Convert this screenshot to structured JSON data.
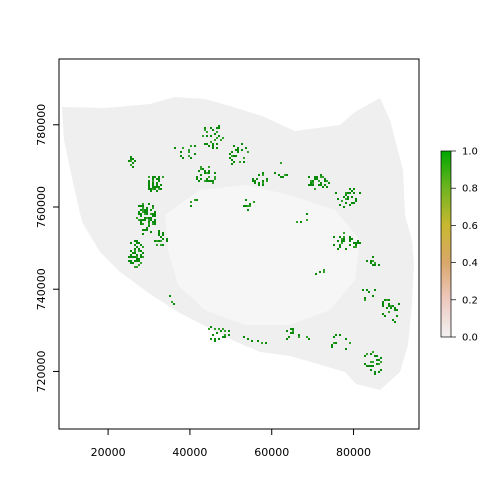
{
  "chart_data": {
    "type": "heatmap",
    "title": "",
    "xlabel": "",
    "ylabel": "",
    "xlim": [
      8000,
      96000
    ],
    "ylim": [
      706000,
      796000
    ],
    "x_ticks": [
      20000,
      40000,
      60000,
      80000
    ],
    "x_tick_labels": [
      "20000",
      "40000",
      "60000",
      "80000"
    ],
    "y_ticks": [
      720000,
      740000,
      760000,
      780000
    ],
    "y_tick_labels": [
      "720000",
      "740000",
      "760000",
      "780000"
    ],
    "legend": {
      "placement": "right",
      "range": [
        0,
        1
      ],
      "ticks": [
        0.0,
        0.2,
        0.4,
        0.6,
        0.8,
        1.0
      ],
      "tick_labels": [
        "0.0",
        "0.2",
        "0.4",
        "0.6",
        "0.8",
        "1.0"
      ],
      "colors": [
        "#f2f2f2",
        "#eec9c0",
        "#d9a76a",
        "#c9b830",
        "#6fb520",
        "#00a600"
      ]
    },
    "colors": {
      "background_region": "#efefef",
      "high_value": "#0a8a0a",
      "mid_value": "#33a02c"
    },
    "clusters": [
      {
        "x": 29000,
        "y": 758000,
        "rx": 2600,
        "ry": 4500,
        "density": 0.55,
        "value": 1.0
      },
      {
        "x": 26500,
        "y": 749000,
        "rx": 2200,
        "ry": 3500,
        "density": 0.5,
        "value": 1.0
      },
      {
        "x": 31500,
        "y": 766000,
        "rx": 2200,
        "ry": 2500,
        "density": 0.45,
        "value": 1.0
      },
      {
        "x": 25500,
        "y": 771500,
        "rx": 1200,
        "ry": 1500,
        "density": 0.5,
        "value": 1.0
      },
      {
        "x": 32500,
        "y": 753000,
        "rx": 1800,
        "ry": 2500,
        "density": 0.35,
        "value": 1.0
      },
      {
        "x": 38500,
        "y": 774000,
        "rx": 3000,
        "ry": 2500,
        "density": 0.3,
        "value": 1.0
      },
      {
        "x": 45500,
        "y": 777500,
        "rx": 3500,
        "ry": 3000,
        "density": 0.35,
        "value": 1.0
      },
      {
        "x": 44000,
        "y": 768000,
        "rx": 3000,
        "ry": 2500,
        "density": 0.3,
        "value": 1.0
      },
      {
        "x": 51500,
        "y": 773000,
        "rx": 2500,
        "ry": 3000,
        "density": 0.3,
        "value": 1.0
      },
      {
        "x": 57000,
        "y": 767000,
        "rx": 2200,
        "ry": 2000,
        "density": 0.35,
        "value": 1.0
      },
      {
        "x": 62000,
        "y": 769500,
        "rx": 2000,
        "ry": 2500,
        "density": 0.2,
        "value": 1.0
      },
      {
        "x": 71500,
        "y": 766500,
        "rx": 3500,
        "ry": 2000,
        "density": 0.35,
        "value": 1.0
      },
      {
        "x": 78500,
        "y": 763000,
        "rx": 3500,
        "ry": 3000,
        "density": 0.3,
        "value": 1.0
      },
      {
        "x": 78000,
        "y": 752000,
        "rx": 3500,
        "ry": 2500,
        "density": 0.25,
        "value": 1.0
      },
      {
        "x": 84500,
        "y": 747000,
        "rx": 2500,
        "ry": 2000,
        "density": 0.25,
        "value": 1.0
      },
      {
        "x": 83500,
        "y": 739000,
        "rx": 2000,
        "ry": 2500,
        "density": 0.2,
        "value": 1.0
      },
      {
        "x": 89000,
        "y": 735000,
        "rx": 2500,
        "ry": 4000,
        "density": 0.25,
        "value": 1.0
      },
      {
        "x": 84500,
        "y": 722500,
        "rx": 2500,
        "ry": 3000,
        "density": 0.25,
        "value": 1.0
      },
      {
        "x": 76500,
        "y": 727000,
        "rx": 2500,
        "ry": 2500,
        "density": 0.15,
        "value": 1.0
      },
      {
        "x": 66000,
        "y": 729000,
        "rx": 4000,
        "ry": 2000,
        "density": 0.18,
        "value": 1.0
      },
      {
        "x": 56000,
        "y": 728500,
        "rx": 4000,
        "ry": 2000,
        "density": 0.2,
        "value": 1.0
      },
      {
        "x": 46500,
        "y": 729500,
        "rx": 3000,
        "ry": 2000,
        "density": 0.15,
        "value": 1.0
      },
      {
        "x": 54000,
        "y": 760500,
        "rx": 2000,
        "ry": 2000,
        "density": 0.15,
        "value": 1.0
      },
      {
        "x": 40000,
        "y": 761500,
        "rx": 2000,
        "ry": 1500,
        "density": 0.15,
        "value": 1.0
      },
      {
        "x": 67500,
        "y": 757500,
        "rx": 2000,
        "ry": 1500,
        "density": 0.15,
        "value": 1.0
      },
      {
        "x": 71000,
        "y": 744500,
        "rx": 2000,
        "ry": 2000,
        "density": 0.1,
        "value": 1.0
      },
      {
        "x": 36000,
        "y": 737500,
        "rx": 1500,
        "ry": 1500,
        "density": 0.15,
        "value": 1.0
      }
    ]
  }
}
